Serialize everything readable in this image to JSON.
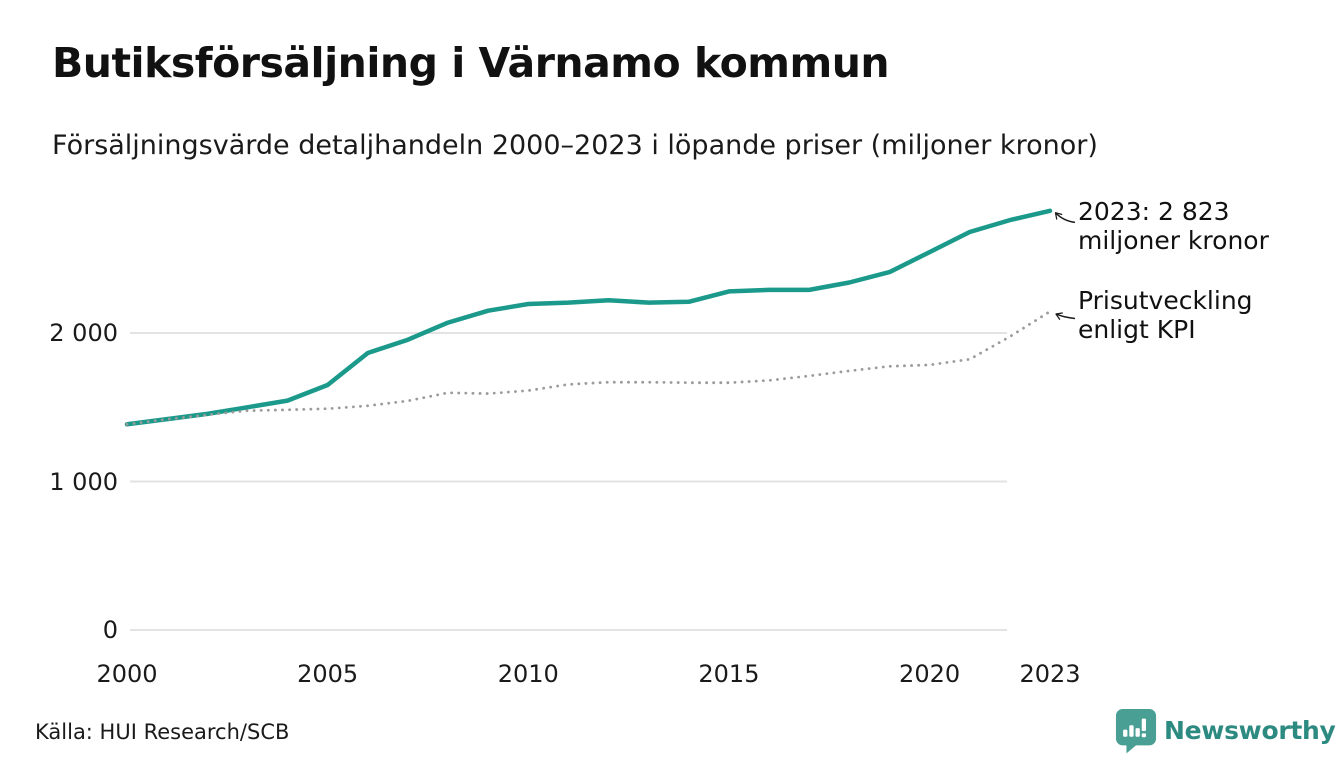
{
  "chart_data": {
    "type": "line",
    "title": "Butiksförsäljning i Värnamo kommun",
    "subtitle": "Försäljningsvärde detaljhandeln 2000–2023 i löpande priser (miljoner kronor)",
    "x": [
      2000,
      2001,
      2002,
      2003,
      2004,
      2005,
      2006,
      2007,
      2008,
      2009,
      2010,
      2011,
      2012,
      2013,
      2014,
      2015,
      2016,
      2017,
      2018,
      2019,
      2020,
      2021,
      2022,
      2023
    ],
    "series": [
      {
        "name": "Butiksförsäljning i löpande priser (miljoner kronor)",
        "color": "#1b998b",
        "style": "solid",
        "values": [
          1385,
          1420,
          1455,
          1500,
          1545,
          1650,
          1865,
          1955,
          2070,
          2150,
          2195,
          2205,
          2220,
          2205,
          2210,
          2280,
          2290,
          2290,
          2340,
          2410,
          2545,
          2680,
          2760,
          2823
        ]
      },
      {
        "name": "Prisutveckling enligt KPI",
        "color": "#9b9b9b",
        "style": "dotted",
        "values": [
          1385,
          1419,
          1449,
          1477,
          1483,
          1490,
          1510,
          1543,
          1597,
          1592,
          1612,
          1654,
          1669,
          1669,
          1665,
          1665,
          1681,
          1711,
          1745,
          1776,
          1785,
          1823,
          1976,
          2145
        ]
      }
    ],
    "ylim": [
      0,
      3000
    ],
    "yticks": [
      0,
      1000,
      2000
    ],
    "ytick_labels": [
      "0",
      "1 000",
      "2 000"
    ],
    "xticks": [
      2000,
      2005,
      2010,
      2015,
      2020,
      2023
    ],
    "grid": "horizontal",
    "legend_position": "none",
    "grid_color": "#e3e3e3",
    "annotations": [
      {
        "lines": [
          "2023: 2 823",
          "miljoner kronor"
        ],
        "target_series": 0
      },
      {
        "lines": [
          "Prisutveckling",
          "enligt KPI"
        ],
        "target_series": 1
      }
    ]
  },
  "footer": {
    "source": "Källa: HUI Research/SCB",
    "brand": "Newsworthy"
  },
  "colors": {
    "accent_teal": "#1b998b",
    "kpi_gray": "#9b9b9b",
    "logo_teal": "#4a9f94",
    "logo_text_teal": "#2d8a80"
  }
}
